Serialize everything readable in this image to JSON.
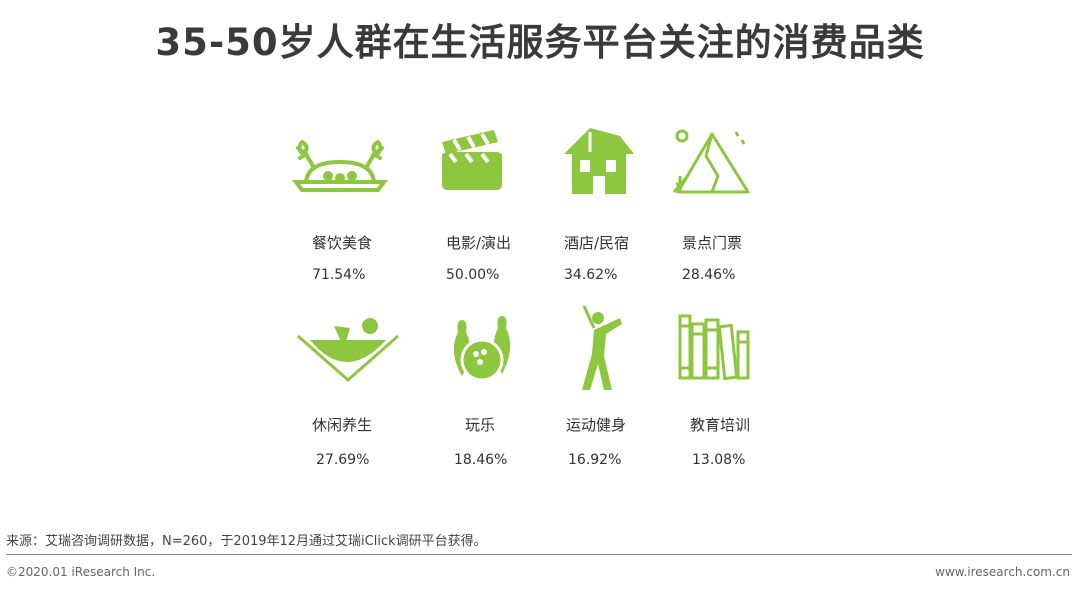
{
  "title": "35-50岁人群在生活服务平台关注的消费品类",
  "accent": "#8dc63f",
  "categories": [
    {
      "label": "餐饮美食",
      "value": "71.54%",
      "icon": "crab-plate-icon"
    },
    {
      "label": "电影/演出",
      "value": "50.00%",
      "icon": "clapperboard-icon"
    },
    {
      "label": "酒店/民宿",
      "value": "34.62%",
      "icon": "house-icon"
    },
    {
      "label": "景点门票",
      "value": "28.46%",
      "icon": "mountain-icon"
    },
    {
      "label": "休闲养生",
      "value": "27.69%",
      "icon": "hammock-reader-icon"
    },
    {
      "label": "玩乐",
      "value": "18.46%",
      "icon": "bowling-icon"
    },
    {
      "label": "运动健身",
      "value": "16.92%",
      "icon": "golfer-icon"
    },
    {
      "label": "教育培训",
      "value": "13.08%",
      "icon": "books-icon"
    }
  ],
  "footer": {
    "source": "来源：艾瑞咨询调研数据，N=260，于2019年12月通过艾瑞iClick调研平台获得。",
    "copyright": "©2020.01 iResearch Inc.",
    "website": "www.iresearch.com.cn"
  }
}
